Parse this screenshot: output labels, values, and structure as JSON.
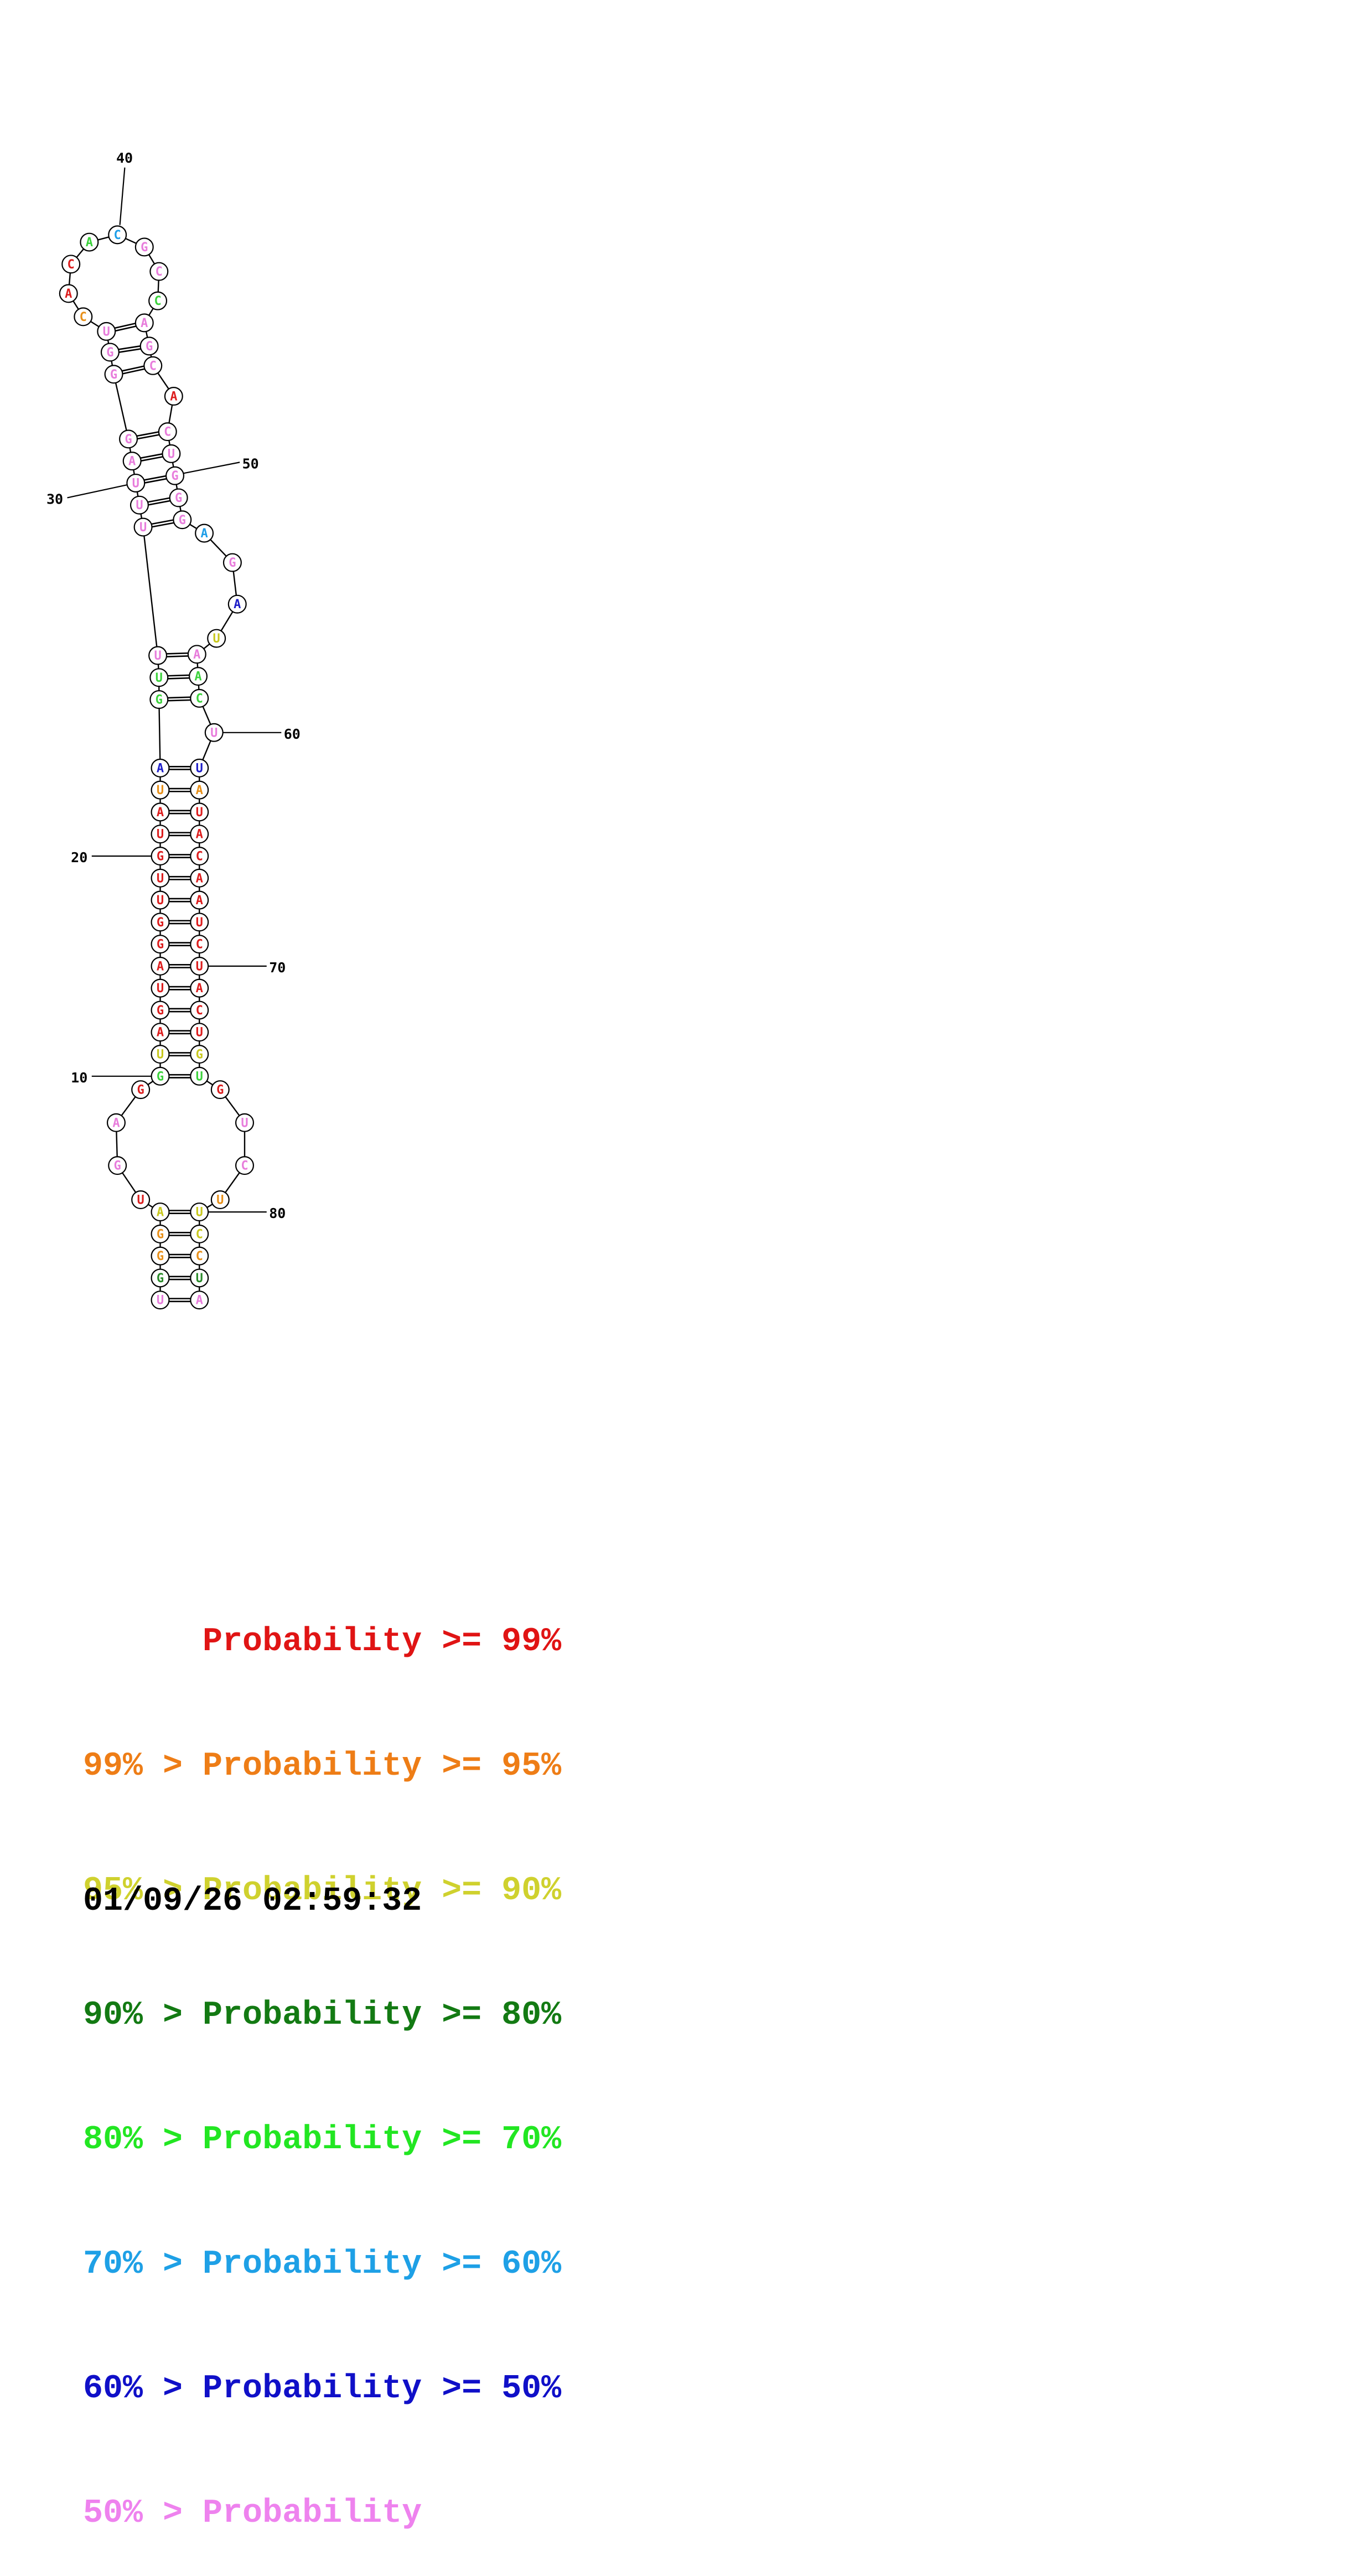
{
  "structure": {
    "bases": [
      {
        "n": 1,
        "b": "U",
        "c": "#e87ddc"
      },
      {
        "n": 2,
        "b": "G",
        "c": "#2a8a2a"
      },
      {
        "n": 3,
        "b": "G",
        "c": "#e8901a"
      },
      {
        "n": 4,
        "b": "G",
        "c": "#e8901a"
      },
      {
        "n": 5,
        "b": "A",
        "c": "#c8c81e"
      },
      {
        "n": 6,
        "b": "U",
        "c": "#dc1e1e"
      },
      {
        "n": 7,
        "b": "G",
        "c": "#e87ddc"
      },
      {
        "n": 8,
        "b": "A",
        "c": "#e87ddc"
      },
      {
        "n": 9,
        "b": "G",
        "c": "#dc1e1e"
      },
      {
        "n": 10,
        "b": "G",
        "c": "#3cd23c"
      },
      {
        "n": 11,
        "b": "U",
        "c": "#c8c81e"
      },
      {
        "n": 12,
        "b": "A",
        "c": "#dc1e1e"
      },
      {
        "n": 13,
        "b": "G",
        "c": "#dc1e1e"
      },
      {
        "n": 14,
        "b": "U",
        "c": "#dc1e1e"
      },
      {
        "n": 15,
        "b": "A",
        "c": "#dc1e1e"
      },
      {
        "n": 16,
        "b": "G",
        "c": "#dc1e1e"
      },
      {
        "n": 17,
        "b": "G",
        "c": "#dc1e1e"
      },
      {
        "n": 18,
        "b": "U",
        "c": "#dc1e1e"
      },
      {
        "n": 19,
        "b": "U",
        "c": "#dc1e1e"
      },
      {
        "n": 20,
        "b": "G",
        "c": "#dc1e1e"
      },
      {
        "n": 21,
        "b": "U",
        "c": "#dc1e1e"
      },
      {
        "n": 22,
        "b": "A",
        "c": "#dc1e1e"
      },
      {
        "n": 23,
        "b": "U",
        "c": "#e8901a"
      },
      {
        "n": 24,
        "b": "A",
        "c": "#1e1ec8"
      },
      {
        "n": 25,
        "b": "G",
        "c": "#3cd23c"
      },
      {
        "n": 26,
        "b": "U",
        "c": "#3cd23c"
      },
      {
        "n": 27,
        "b": "U",
        "c": "#e87ddc"
      },
      {
        "n": 28,
        "b": "U",
        "c": "#e87ddc"
      },
      {
        "n": 29,
        "b": "U",
        "c": "#e87ddc"
      },
      {
        "n": 30,
        "b": "U",
        "c": "#e87ddc"
      },
      {
        "n": 31,
        "b": "A",
        "c": "#e87ddc"
      },
      {
        "n": 32,
        "b": "G",
        "c": "#e87ddc"
      },
      {
        "n": 33,
        "b": "G",
        "c": "#e87ddc"
      },
      {
        "n": 34,
        "b": "G",
        "c": "#e87ddc"
      },
      {
        "n": 35,
        "b": "U",
        "c": "#e87ddc"
      },
      {
        "n": 36,
        "b": "C",
        "c": "#e8901a"
      },
      {
        "n": 37,
        "b": "A",
        "c": "#dc1e1e"
      },
      {
        "n": 38,
        "b": "C",
        "c": "#dc1e1e"
      },
      {
        "n": 39,
        "b": "A",
        "c": "#3cd23c"
      },
      {
        "n": 40,
        "b": "C",
        "c": "#1e9ee8"
      },
      {
        "n": 41,
        "b": "G",
        "c": "#e87ddc"
      },
      {
        "n": 42,
        "b": "C",
        "c": "#e87ddc"
      },
      {
        "n": 43,
        "b": "C",
        "c": "#3cd23c"
      },
      {
        "n": 44,
        "b": "A",
        "c": "#e87ddc"
      },
      {
        "n": 45,
        "b": "G",
        "c": "#e87ddc"
      },
      {
        "n": 46,
        "b": "C",
        "c": "#e87ddc"
      },
      {
        "n": 47,
        "b": "A",
        "c": "#dc1e1e"
      },
      {
        "n": 48,
        "b": "C",
        "c": "#e87ddc"
      },
      {
        "n": 49,
        "b": "U",
        "c": "#e87ddc"
      },
      {
        "n": 50,
        "b": "G",
        "c": "#e87ddc"
      },
      {
        "n": 51,
        "b": "G",
        "c": "#e87ddc"
      },
      {
        "n": 52,
        "b": "G",
        "c": "#e87ddc"
      },
      {
        "n": 53,
        "b": "A",
        "c": "#1e9ee8"
      },
      {
        "n": 54,
        "b": "G",
        "c": "#e87ddc"
      },
      {
        "n": 55,
        "b": "A",
        "c": "#1e1ec8"
      },
      {
        "n": 56,
        "b": "U",
        "c": "#c8c81e"
      },
      {
        "n": 57,
        "b": "A",
        "c": "#e87ddc"
      },
      {
        "n": 58,
        "b": "A",
        "c": "#3cd23c"
      },
      {
        "n": 59,
        "b": "C",
        "c": "#3cd23c"
      },
      {
        "n": 60,
        "b": "U",
        "c": "#e87ddc"
      },
      {
        "n": 61,
        "b": "U",
        "c": "#1e1ec8"
      },
      {
        "n": 62,
        "b": "A",
        "c": "#e8901a"
      },
      {
        "n": 63,
        "b": "U",
        "c": "#dc1e1e"
      },
      {
        "n": 64,
        "b": "A",
        "c": "#dc1e1e"
      },
      {
        "n": 65,
        "b": "C",
        "c": "#dc1e1e"
      },
      {
        "n": 66,
        "b": "A",
        "c": "#dc1e1e"
      },
      {
        "n": 67,
        "b": "A",
        "c": "#dc1e1e"
      },
      {
        "n": 68,
        "b": "U",
        "c": "#dc1e1e"
      },
      {
        "n": 69,
        "b": "C",
        "c": "#dc1e1e"
      },
      {
        "n": 70,
        "b": "U",
        "c": "#dc1e1e"
      },
      {
        "n": 71,
        "b": "A",
        "c": "#dc1e1e"
      },
      {
        "n": 72,
        "b": "C",
        "c": "#dc1e1e"
      },
      {
        "n": 73,
        "b": "U",
        "c": "#dc1e1e"
      },
      {
        "n": 74,
        "b": "G",
        "c": "#c8c81e"
      },
      {
        "n": 75,
        "b": "U",
        "c": "#3cd23c"
      },
      {
        "n": 76,
        "b": "G",
        "c": "#dc1e1e"
      },
      {
        "n": 77,
        "b": "U",
        "c": "#e87ddc"
      },
      {
        "n": 78,
        "b": "C",
        "c": "#e87ddc"
      },
      {
        "n": 79,
        "b": "U",
        "c": "#e8901a"
      },
      {
        "n": 80,
        "b": "U",
        "c": "#c8c81e"
      },
      {
        "n": 81,
        "b": "C",
        "c": "#c8c81e"
      },
      {
        "n": 82,
        "b": "C",
        "c": "#e8901a"
      },
      {
        "n": 83,
        "b": "U",
        "c": "#2a8a2a"
      },
      {
        "n": 84,
        "b": "A",
        "c": "#e87ddc"
      }
    ],
    "pairs": [
      [
        1,
        84
      ],
      [
        2,
        83
      ],
      [
        3,
        82
      ],
      [
        4,
        81
      ],
      [
        5,
        80
      ],
      [
        10,
        75
      ],
      [
        11,
        74
      ],
      [
        12,
        73
      ],
      [
        13,
        72
      ],
      [
        14,
        71
      ],
      [
        15,
        70
      ],
      [
        16,
        69
      ],
      [
        17,
        68
      ],
      [
        18,
        67
      ],
      [
        19,
        66
      ],
      [
        20,
        65
      ],
      [
        21,
        64
      ],
      [
        22,
        63
      ],
      [
        23,
        62
      ],
      [
        24,
        61
      ],
      [
        25,
        59
      ],
      [
        26,
        58
      ],
      [
        27,
        57
      ],
      [
        28,
        52
      ],
      [
        29,
        51
      ],
      [
        30,
        50
      ],
      [
        31,
        49
      ],
      [
        32,
        48
      ],
      [
        33,
        46
      ],
      [
        34,
        45
      ],
      [
        35,
        44
      ]
    ],
    "position_labels": [
      "10",
      "20",
      "30",
      "40",
      "50",
      "60",
      "70",
      "80"
    ]
  },
  "legend": [
    {
      "prefix": "",
      "text": "Probability >= 99%",
      "color": "#e01414"
    },
    {
      "prefix": "99% > ",
      "text": "Probability >= 95%",
      "color": "#ee7d16"
    },
    {
      "prefix": "95% > ",
      "text": "Probability >= 90%",
      "color": "#cfd12e"
    },
    {
      "prefix": "90% > ",
      "text": "Probability >= 80%",
      "color": "#137a13"
    },
    {
      "prefix": "80% > ",
      "text": "Probability >= 70%",
      "color": "#22e622"
    },
    {
      "prefix": "70% > ",
      "text": "Probability >= 60%",
      "color": "#1ea0e6"
    },
    {
      "prefix": "60% > ",
      "text": "Probability >= 50%",
      "color": "#1010c8"
    },
    {
      "prefix": "50% > ",
      "text": "Probability",
      "color": "#ee82ee"
    }
  ],
  "timestamp": "01/09/26 02:59:32"
}
